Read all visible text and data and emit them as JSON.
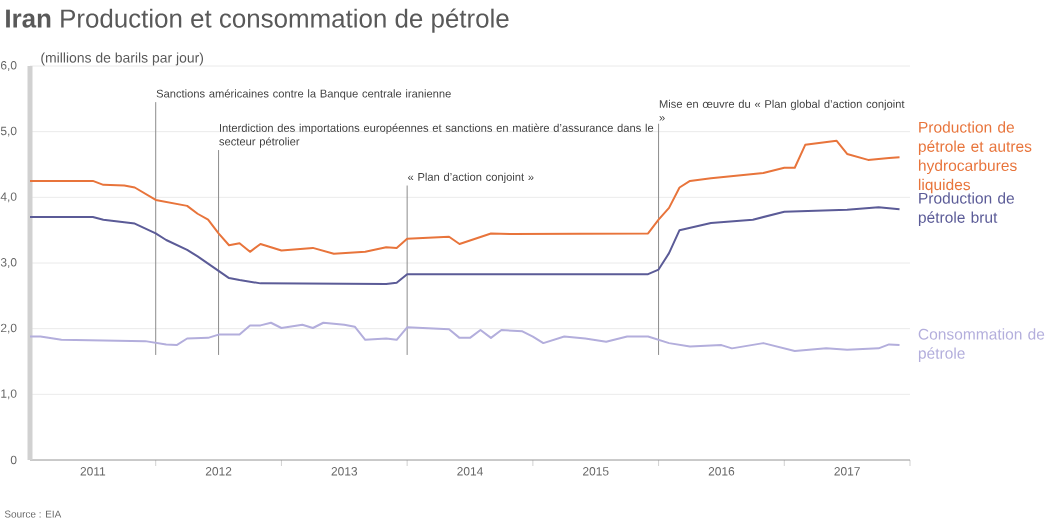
{
  "chart_data": {
    "type": "line",
    "title": "**Iran** Production et consommation de pétrole",
    "ylabel": "(millions de barils par jour)",
    "xlim": [
      "2011-01",
      "2018-01"
    ],
    "xticks": [
      {
        "value": "2011-07",
        "label": "2011"
      },
      {
        "value": "2012-01",
        "label": null
      },
      {
        "value": "2012-07",
        "label": "2012"
      },
      {
        "value": "2013-01",
        "label": null
      },
      {
        "value": "2013-07",
        "label": "2013"
      },
      {
        "value": "2014-01",
        "label": null
      },
      {
        "value": "2014-07",
        "label": "2014"
      },
      {
        "value": "2015-01",
        "label": null
      },
      {
        "value": "2015-07",
        "label": "2015"
      },
      {
        "value": "2016-01",
        "label": null
      },
      {
        "value": "2016-07",
        "label": "2016"
      },
      {
        "value": "2017-01",
        "label": null
      },
      {
        "value": "2017-07",
        "label": "2017"
      },
      {
        "value": "2018-01",
        "label": null
      }
    ],
    "ylim": [
      0,
      6
    ],
    "yticks": [
      {
        "value": 0,
        "label": "0"
      },
      {
        "value": 1,
        "label": "1,0"
      },
      {
        "value": 2,
        "label": "2,0"
      },
      {
        "value": 3,
        "label": "3,0"
      },
      {
        "value": 4,
        "label": "4,0"
      },
      {
        "value": 5,
        "label": "5,0"
      },
      {
        "value": 6,
        "label": "6,0"
      }
    ],
    "grid": "y",
    "series": [
      {
        "name": "Production de pétrole et autres hydrocarbures liquides",
        "color": "#e8743b",
        "x": [
          "2011-01",
          "2011-07",
          "2011-08",
          "2011-10",
          "2011-11",
          "2012-01",
          "2012-04",
          "2012-05",
          "2012-06",
          "2012-07",
          "2012-08",
          "2012-09",
          "2012-10",
          "2012-11",
          "2013-01",
          "2013-04",
          "2013-06",
          "2013-09",
          "2013-11",
          "2013-12",
          "2014-01",
          "2014-05",
          "2014-06",
          "2014-09",
          "2014-11",
          "2015-12",
          "2016-01",
          "2016-02",
          "2016-03",
          "2016-04",
          "2016-06",
          "2016-11",
          "2017-01",
          "2017-02",
          "2017-03",
          "2017-06",
          "2017-07",
          "2017-09",
          "2017-11",
          "2017-12"
        ],
        "values": [
          4.25,
          4.25,
          4.19,
          4.18,
          4.15,
          3.96,
          3.87,
          3.75,
          3.66,
          3.45,
          3.27,
          3.3,
          3.17,
          3.29,
          3.19,
          3.23,
          3.14,
          3.17,
          3.24,
          3.23,
          3.37,
          3.4,
          3.29,
          3.45,
          3.44,
          3.45,
          3.66,
          3.84,
          4.15,
          4.25,
          4.29,
          4.37,
          4.45,
          4.45,
          4.8,
          4.86,
          4.66,
          4.57,
          4.6,
          4.61
        ]
      },
      {
        "name": "Production de pétrole brut",
        "color": "#5b5b97",
        "x": [
          "2011-01",
          "2011-07",
          "2011-08",
          "2011-10",
          "2011-11",
          "2012-01",
          "2012-02",
          "2012-04",
          "2012-05",
          "2012-07",
          "2012-08",
          "2012-09",
          "2012-11",
          "2013-11",
          "2013-12",
          "2014-01",
          "2015-12",
          "2016-01",
          "2016-02",
          "2016-03",
          "2016-06",
          "2016-10",
          "2017-01",
          "2017-07",
          "2017-10",
          "2017-12"
        ],
        "values": [
          3.7,
          3.7,
          3.66,
          3.62,
          3.6,
          3.45,
          3.35,
          3.2,
          3.1,
          2.88,
          2.77,
          2.74,
          2.69,
          2.68,
          2.7,
          2.83,
          2.83,
          2.9,
          3.15,
          3.5,
          3.61,
          3.66,
          3.78,
          3.81,
          3.85,
          3.82
        ]
      },
      {
        "name": "Consommation de pétrole",
        "color": "#b3aedc",
        "x": [
          "2011-01",
          "2011-02",
          "2011-04",
          "2011-12",
          "2012-02",
          "2012-03",
          "2012-04",
          "2012-06",
          "2012-07",
          "2012-09",
          "2012-10",
          "2012-11",
          "2012-12",
          "2013-01",
          "2013-03",
          "2013-04",
          "2013-05",
          "2013-07",
          "2013-08",
          "2013-09",
          "2013-11",
          "2013-12",
          "2014-01",
          "2014-04",
          "2014-05",
          "2014-06",
          "2014-07",
          "2014-08",
          "2014-09",
          "2014-10",
          "2014-12",
          "2015-01",
          "2015-02",
          "2015-04",
          "2015-06",
          "2015-08",
          "2015-10",
          "2015-12",
          "2016-02",
          "2016-04",
          "2016-07",
          "2016-08",
          "2016-11",
          "2017-02",
          "2017-05",
          "2017-07",
          "2017-10",
          "2017-11",
          "2017-12"
        ],
        "values": [
          1.88,
          1.88,
          1.83,
          1.81,
          1.76,
          1.75,
          1.85,
          1.86,
          1.91,
          1.91,
          2.05,
          2.05,
          2.09,
          2.01,
          2.06,
          2.01,
          2.09,
          2.06,
          2.03,
          1.83,
          1.85,
          1.83,
          2.02,
          2.0,
          1.99,
          1.86,
          1.86,
          1.98,
          1.86,
          1.98,
          1.96,
          1.88,
          1.78,
          1.88,
          1.85,
          1.8,
          1.88,
          1.88,
          1.78,
          1.73,
          1.75,
          1.7,
          1.78,
          1.66,
          1.7,
          1.68,
          1.7,
          1.76,
          1.75
        ]
      }
    ],
    "ref_lines": [
      {
        "axis": "x",
        "value": "2012-01",
        "label": "Sanctions américaines contre la Banque centrale iranienne",
        "color": "#8c8c8c"
      },
      {
        "axis": "x",
        "value": "2012-07",
        "label": "Interdiction des importations européennes et sanctions en matière d’assurance dans le secteur pétrolier",
        "color": "#8c8c8c"
      },
      {
        "axis": "x",
        "value": "2014-01",
        "label": "« Plan d’action conjoint »",
        "color": "#8c8c8c"
      },
      {
        "axis": "x",
        "value": "2016-01",
        "label": "Mise en œuvre du « Plan global d’action conjoint »",
        "color": "#8c8c8c"
      }
    ],
    "annotations": [
      "Source : EIA"
    ]
  }
}
